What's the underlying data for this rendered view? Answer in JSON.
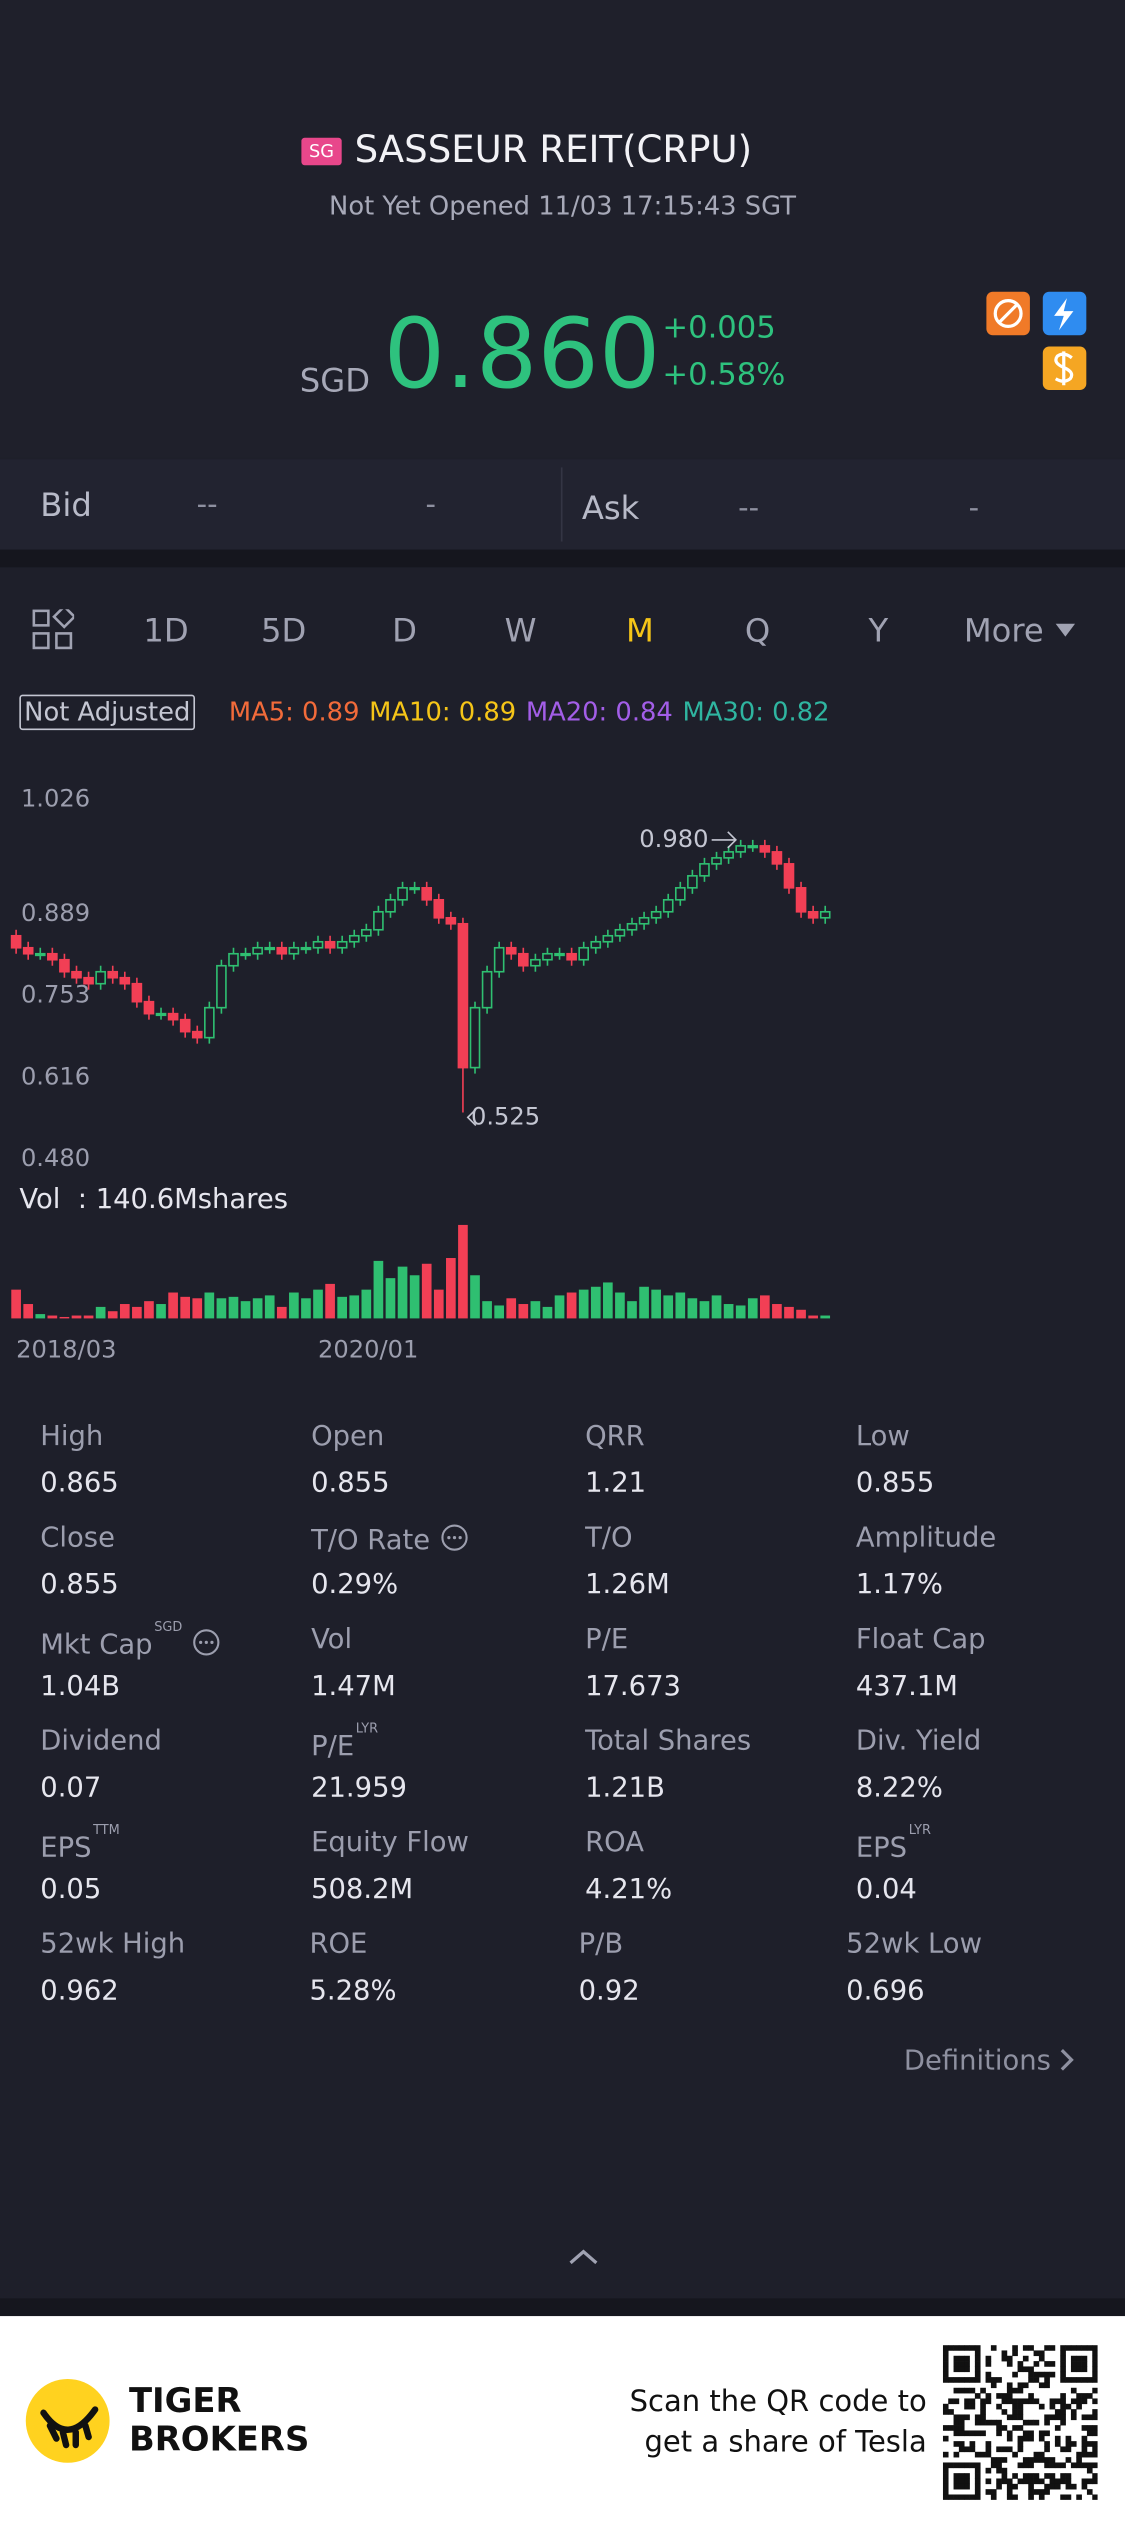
{
  "header": {
    "badge": "SG",
    "title": "SASSEUR REIT(CRPU)",
    "status": "Not Yet Opened 11/03 17:15:43 SGT"
  },
  "quote": {
    "currency": "SGD",
    "price": "0.860",
    "change": "+0.005",
    "change_pct": "+0.58%"
  },
  "bid_ask": {
    "bid_label": "Bid",
    "bid_price": "--",
    "bid_size": "-",
    "ask_label": "Ask",
    "ask_price": "--",
    "ask_size": "-"
  },
  "tabs": [
    "1D",
    "5D",
    "D",
    "W",
    "M",
    "Q",
    "Y",
    "More"
  ],
  "adjust": "Not Adjusted",
  "ma_labels": [
    "MA5: 0.89",
    "MA10: 0.89",
    "MA20: 0.84",
    "MA30: 0.82"
  ],
  "chart_data": {
    "type": "candlestick",
    "up_color": "#2fbf71",
    "down_color": "#f23f55",
    "ylim": [
      0.48,
      1.026
    ],
    "yticks": [
      1.026,
      0.889,
      0.753,
      0.616,
      {
        "value": 0.48,
        "label": "0.480"
      }
    ],
    "xlim": [
      0,
      67
    ],
    "xticks": [
      {
        "value": 0,
        "label": "2018/03"
      },
      {
        "value": 25,
        "label": "2020/01"
      }
    ],
    "grid": false,
    "open": [
      0.82,
      0.8,
      0.79,
      0.79,
      0.78,
      0.76,
      0.75,
      0.74,
      0.76,
      0.75,
      0.74,
      0.71,
      0.69,
      0.69,
      0.68,
      0.66,
      0.65,
      0.7,
      0.77,
      0.79,
      0.79,
      0.8,
      0.8,
      0.79,
      0.8,
      0.8,
      0.81,
      0.8,
      0.81,
      0.82,
      0.83,
      0.86,
      0.88,
      0.9,
      0.9,
      0.88,
      0.85,
      0.84,
      0.6,
      0.7,
      0.76,
      0.8,
      0.79,
      0.77,
      0.78,
      0.79,
      0.79,
      0.78,
      0.8,
      0.81,
      0.82,
      0.83,
      0.84,
      0.85,
      0.86,
      0.88,
      0.9,
      0.92,
      0.94,
      0.95,
      0.96,
      0.97,
      0.97,
      0.96,
      0.94,
      0.9,
      0.86,
      0.85
    ],
    "high": [
      0.83,
      0.81,
      0.8,
      0.8,
      0.79,
      0.77,
      0.76,
      0.77,
      0.77,
      0.76,
      0.75,
      0.72,
      0.7,
      0.7,
      0.69,
      0.67,
      0.71,
      0.78,
      0.8,
      0.8,
      0.81,
      0.81,
      0.81,
      0.81,
      0.81,
      0.82,
      0.82,
      0.82,
      0.83,
      0.84,
      0.87,
      0.89,
      0.91,
      0.91,
      0.91,
      0.89,
      0.86,
      0.85,
      0.71,
      0.77,
      0.81,
      0.81,
      0.8,
      0.79,
      0.8,
      0.8,
      0.8,
      0.81,
      0.82,
      0.83,
      0.84,
      0.85,
      0.86,
      0.87,
      0.89,
      0.91,
      0.93,
      0.95,
      0.96,
      0.97,
      0.98,
      0.98,
      0.98,
      0.97,
      0.95,
      0.91,
      0.87,
      0.87
    ],
    "low": [
      0.79,
      0.78,
      0.78,
      0.77,
      0.75,
      0.74,
      0.73,
      0.73,
      0.74,
      0.73,
      0.7,
      0.68,
      0.68,
      0.67,
      0.65,
      0.64,
      0.64,
      0.69,
      0.76,
      0.78,
      0.78,
      0.79,
      0.78,
      0.78,
      0.79,
      0.79,
      0.79,
      0.79,
      0.8,
      0.81,
      0.82,
      0.85,
      0.87,
      0.89,
      0.87,
      0.84,
      0.83,
      0.525,
      0.59,
      0.69,
      0.75,
      0.78,
      0.76,
      0.76,
      0.77,
      0.78,
      0.77,
      0.77,
      0.79,
      0.8,
      0.81,
      0.82,
      0.83,
      0.84,
      0.85,
      0.87,
      0.89,
      0.91,
      0.93,
      0.94,
      0.95,
      0.96,
      0.95,
      0.93,
      0.89,
      0.85,
      0.84,
      0.84
    ],
    "close": [
      0.8,
      0.79,
      0.79,
      0.78,
      0.76,
      0.75,
      0.74,
      0.76,
      0.75,
      0.74,
      0.71,
      0.69,
      0.69,
      0.68,
      0.66,
      0.65,
      0.7,
      0.77,
      0.79,
      0.79,
      0.8,
      0.8,
      0.79,
      0.8,
      0.8,
      0.81,
      0.8,
      0.81,
      0.82,
      0.83,
      0.86,
      0.88,
      0.9,
      0.9,
      0.88,
      0.85,
      0.84,
      0.6,
      0.7,
      0.76,
      0.8,
      0.79,
      0.77,
      0.78,
      0.79,
      0.79,
      0.78,
      0.8,
      0.81,
      0.82,
      0.83,
      0.84,
      0.85,
      0.86,
      0.88,
      0.9,
      0.92,
      0.94,
      0.95,
      0.96,
      0.97,
      0.97,
      0.96,
      0.94,
      0.9,
      0.86,
      0.85,
      0.86
    ],
    "volume": [
      20,
      10,
      3,
      2,
      1,
      2,
      2,
      8,
      5,
      10,
      8,
      12,
      10,
      18,
      15,
      14,
      18,
      14,
      15,
      12,
      14,
      16,
      8,
      18,
      14,
      20,
      24,
      15,
      16,
      20,
      40,
      28,
      36,
      30,
      38,
      20,
      42,
      65,
      30,
      12,
      9,
      14,
      10,
      12,
      8,
      16,
      18,
      20,
      22,
      25,
      18,
      12,
      22,
      20,
      16,
      18,
      14,
      12,
      16,
      10,
      9,
      14,
      16,
      10,
      8,
      6,
      2,
      2
    ],
    "volume_label": "Vol  : 140.6Mshares",
    "annotations": [
      {
        "index": 60,
        "value": 0.98,
        "label": "0.980"
      },
      {
        "index": 37,
        "value": 0.525,
        "label": "0.525"
      }
    ]
  },
  "stats": [
    {
      "label": "High",
      "value": "0.865"
    },
    {
      "label": "Open",
      "value": "0.855"
    },
    {
      "label": "QRR",
      "value": "1.21"
    },
    {
      "label": "Low",
      "value": "0.855"
    },
    {
      "label": "Close",
      "value": "0.855"
    },
    {
      "label": "T/O Rate",
      "value": "0.29%",
      "info": true
    },
    {
      "label": "T/O",
      "value": "1.26M"
    },
    {
      "label": "Amplitude",
      "value": "1.17%"
    },
    {
      "label": "Mkt Cap",
      "value": "1.04B",
      "sup": "SGD",
      "info": true
    },
    {
      "label": "Vol",
      "value": "1.47M"
    },
    {
      "label": "P/E",
      "value": "17.673"
    },
    {
      "label": "Float Cap",
      "value": "437.1M"
    },
    {
      "label": "Dividend",
      "value": "0.07"
    },
    {
      "label": "P/E",
      "value": "21.959",
      "sup": "LYR"
    },
    {
      "label": "Total Shares",
      "value": "1.21B"
    },
    {
      "label": "Div. Yield",
      "value": "8.22%"
    },
    {
      "label": "EPS",
      "value": "0.05",
      "sup": "TTM"
    },
    {
      "label": "Equity Flow",
      "value": "508.2M"
    },
    {
      "label": "ROA",
      "value": "4.21%"
    },
    {
      "label": "EPS",
      "value": "0.04",
      "sup": "LYR"
    },
    {
      "label": "52wk High",
      "value": "0.962"
    },
    {
      "label": "ROE",
      "value": "5.28%"
    },
    {
      "label": "P/B",
      "value": "0.92"
    },
    {
      "label": "52wk Low",
      "value": "0.696"
    }
  ],
  "definitions": "Definitions",
  "footer": {
    "brand": [
      "TIGER",
      "BROKERS"
    ],
    "promo": [
      "Scan the QR code to",
      "get a share of Tesla"
    ]
  }
}
